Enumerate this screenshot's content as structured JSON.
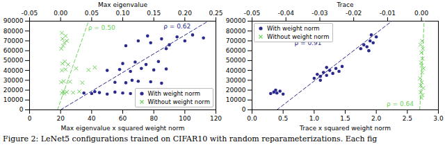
{
  "chart_data": [
    {
      "type": "scatter",
      "xlabel": "Max eigenvalue x squared weight norm",
      "x2label": "Max eigenvalue",
      "xlim": [
        0,
        120
      ],
      "xticks": [
        0,
        20,
        40,
        60,
        80,
        100,
        120
      ],
      "x2lim": [
        -0.05,
        0.25
      ],
      "x2ticks": [
        {
          "value": -0.05,
          "label": "-0.05"
        },
        {
          "value": 0,
          "label": "0.00"
        },
        {
          "value": 0.05,
          "label": "0.05"
        },
        {
          "value": 0.1,
          "label": "0.10"
        },
        {
          "value": 0.15,
          "label": "0.15"
        },
        {
          "value": 0.2,
          "label": "0.20"
        },
        {
          "value": 0.25,
          "label": "0.25"
        }
      ],
      "ylim": [
        0,
        90000
      ],
      "yticks": [
        0,
        10000,
        20000,
        30000,
        40000,
        50000,
        60000,
        70000,
        80000,
        90000
      ],
      "grid": false,
      "legend": "lower right",
      "series": [
        {
          "name": "With weight norm",
          "color": "#2b2b8e",
          "marker": "circle",
          "x": [
            35,
            40,
            45,
            50,
            55,
            60,
            65,
            42,
            55,
            62,
            70,
            78,
            85,
            66,
            50,
            58,
            65,
            72,
            80,
            88,
            60,
            68,
            75,
            83,
            62,
            70,
            78,
            85,
            90,
            95,
            100,
            105,
            112,
            88,
            76
          ],
          "y": [
            17000,
            16500,
            17500,
            16000,
            18000,
            17000,
            16500,
            18500,
            28000,
            27500,
            29000,
            28500,
            27000,
            30000,
            40000,
            41000,
            39000,
            42000,
            40500,
            41500,
            47000,
            48500,
            46000,
            49000,
            65000,
            70000,
            68000,
            72000,
            66000,
            74000,
            70000,
            76000,
            73000,
            62000,
            75000
          ]
        },
        {
          "name": "Without weight norm",
          "color": "#6dd25a",
          "marker": "x",
          "axis": "x2",
          "x": [
            0.002,
            0.004,
            0.006,
            0.01,
            0.02,
            0.03,
            0.001,
            0.005,
            0.015,
            0.035,
            0.002,
            0.008,
            0.025,
            0.045,
            0.055,
            0.003,
            0.007,
            0.012,
            0.001,
            0.004,
            0.006,
            0.003,
            0.008,
            0.01,
            0.002
          ],
          "y": [
            17000,
            19000,
            16500,
            18000,
            17500,
            18500,
            28000,
            29000,
            28500,
            27500,
            40000,
            41000,
            42000,
            40500,
            43000,
            47000,
            49000,
            46000,
            62000,
            65000,
            68000,
            72000,
            75000,
            70000,
            78000
          ]
        }
      ],
      "lines": [
        {
          "color": "#2b2b8e",
          "line_style": "dashed",
          "x": [
            20,
            115
          ],
          "y": [
            0,
            90000
          ]
        },
        {
          "color": "#6dd25a",
          "line_style": "dashed",
          "axis": "x2",
          "x": [
            -0.005,
            0.045
          ],
          "y": [
            0,
            90000
          ]
        }
      ],
      "annotations": [
        {
          "text": "ρ = 0.50",
          "color": "#6dd25a",
          "axis": "x2",
          "x": 0.066,
          "y": 83000
        },
        {
          "text": "ρ = 0.62",
          "color": "#2b2b8e",
          "x": 95,
          "y": 85000
        }
      ]
    },
    {
      "type": "scatter",
      "xlabel": "Trace x squared weight norm",
      "x2label": "Trace",
      "xlim": [
        0,
        3
      ],
      "xticks": [
        {
          "value": 0,
          "label": "0.0"
        },
        {
          "value": 0.5,
          "label": "0.5"
        },
        {
          "value": 1,
          "label": "1.0"
        },
        {
          "value": 1.5,
          "label": "1.5"
        },
        {
          "value": 2,
          "label": "2.0"
        },
        {
          "value": 2.5,
          "label": "2.5"
        },
        {
          "value": 3,
          "label": "3.0"
        }
      ],
      "x2lim": [
        -0.05,
        0.005
      ],
      "x2ticks": [
        {
          "value": -0.05,
          "label": "-0.05"
        },
        {
          "value": -0.04,
          "label": "-0.04"
        },
        {
          "value": -0.03,
          "label": "-0.03"
        },
        {
          "value": -0.02,
          "label": "-0.02"
        },
        {
          "value": -0.01,
          "label": "-0.01"
        },
        {
          "value": 0,
          "label": "0.00"
        }
      ],
      "ylim": [
        0,
        90000
      ],
      "yticks": [
        0,
        10000,
        20000,
        30000,
        40000,
        50000,
        60000,
        70000,
        80000,
        90000
      ],
      "grid": false,
      "legend": "upper left",
      "series": [
        {
          "name": "With weight norm",
          "color": "#2b2b8e",
          "marker": "circle",
          "x": [
            0.3,
            0.35,
            0.4,
            0.45,
            0.5,
            0.38,
            1.0,
            1.05,
            1.1,
            1.15,
            1.2,
            1.25,
            1.3,
            1.35,
            1.4,
            1.45,
            1.1,
            1.2,
            1.75,
            1.8,
            1.85,
            1.9,
            1.95,
            2.0,
            1.88,
            1.92
          ],
          "y": [
            16500,
            18000,
            17000,
            19000,
            16000,
            20000,
            32000,
            36000,
            34000,
            38000,
            35000,
            40000,
            37000,
            42000,
            39000,
            44000,
            30000,
            43000,
            62000,
            66000,
            64000,
            70000,
            68000,
            74000,
            60000,
            76000
          ]
        },
        {
          "name": "Without weight norm",
          "color": "#6dd25a",
          "marker": "x",
          "axis": "x2",
          "x": [
            0,
            0.0003,
            -0.0002,
            0.0005,
            0.0001,
            -0.0004,
            0.0002,
            0.0006,
            -0.0001,
            0.0003,
            0,
            0.0004,
            -0.0003,
            0.0002,
            0.0001,
            -0.0002
          ],
          "y": [
            12000,
            15000,
            18000,
            22000,
            28000,
            32000,
            38000,
            42000,
            48000,
            52000,
            58000,
            62000,
            66000,
            70000,
            45000,
            25000
          ]
        }
      ],
      "lines": [
        {
          "color": "#2b2b8e",
          "line_style": "dashed",
          "x": [
            0.4,
            2.25
          ],
          "y": [
            0,
            90000
          ]
        },
        {
          "color": "#6dd25a",
          "line_style": "dashed",
          "axis": "x2",
          "x": [
            -0.0005,
            0.0008
          ],
          "y": [
            0,
            90000
          ]
        }
      ],
      "annotations": [
        {
          "text": "ρ = 0.91",
          "color": "#2b2b8e",
          "x": 0.9,
          "y": 68000
        },
        {
          "text": "ρ = 0.64",
          "color": "#6dd25a",
          "axis": "x2",
          "x": -0.0063,
          "y": 6000
        }
      ]
    }
  ],
  "caption": "Figure 2: LeNet5 configurations trained on CIFAR10 with random reparameterizations. Each fig"
}
